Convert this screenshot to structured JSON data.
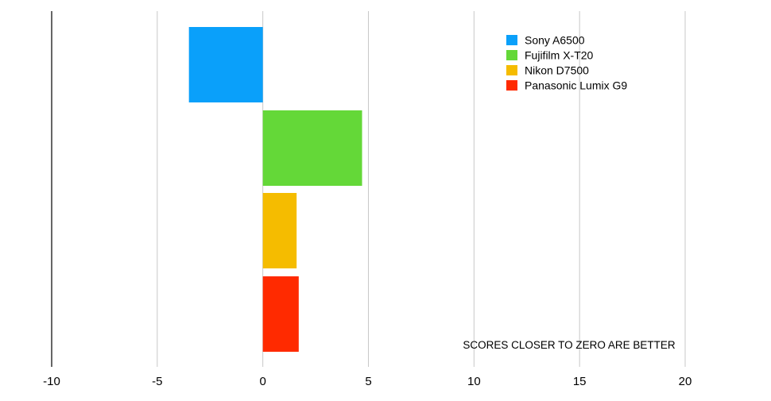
{
  "chart_data": {
    "type": "bar",
    "orientation": "horizontal",
    "xlim": [
      -10,
      20
    ],
    "xticks": [
      "-10",
      "-5",
      "0",
      "5",
      "10",
      "15",
      "20"
    ],
    "grid": true,
    "legend_position": "top-right",
    "categories": [
      "Sony A6500",
      "Fujifilm X-T20",
      "Nikon D7500",
      "Panasonic Lumix G9"
    ],
    "values": [
      -3.5,
      4.7,
      1.6,
      1.7
    ],
    "colors": [
      "#0aa0fa",
      "#64d838",
      "#f5bc00",
      "#ff2a00"
    ],
    "annotation": "SCORES CLOSER TO ZERO ARE BETTER"
  }
}
